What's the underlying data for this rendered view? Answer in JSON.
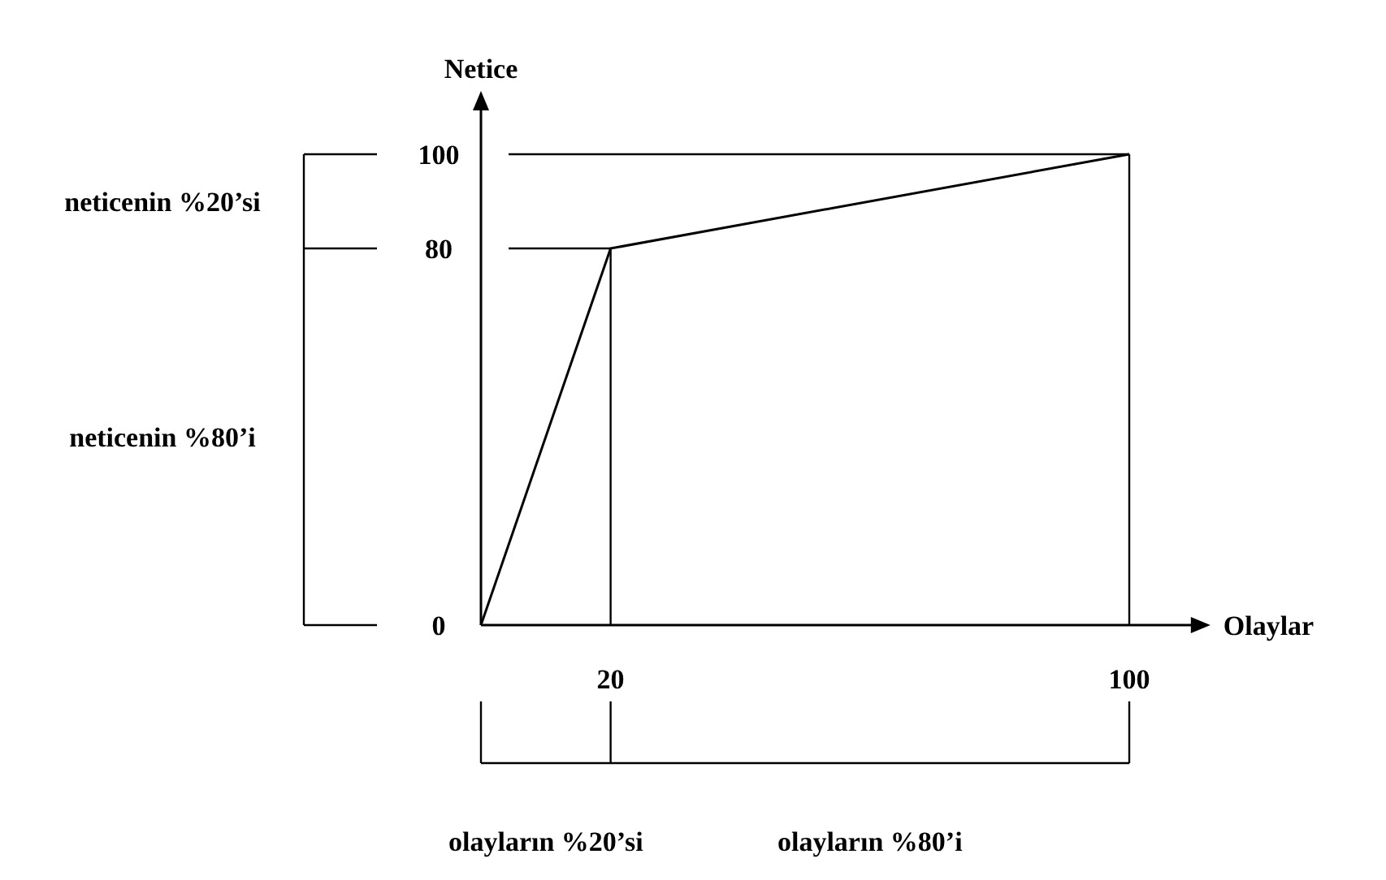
{
  "chart_data": {
    "type": "line",
    "xlabel": "Olaylar",
    "ylabel": "Netice",
    "x": [
      0,
      20,
      100
    ],
    "values": [
      0,
      80,
      100
    ],
    "color": "#000000",
    "xlim": [
      0,
      110
    ],
    "ylim": [
      0,
      110
    ],
    "xticks": [
      20,
      100
    ],
    "yticks": [
      0,
      80,
      100
    ],
    "ref_lines": [
      {
        "axis": "y",
        "value": 100
      },
      {
        "axis": "y",
        "value": 80
      },
      {
        "axis": "x",
        "value": 20
      },
      {
        "axis": "x",
        "value": 100
      }
    ],
    "annotations": [
      "neticenin %20’si",
      "neticenin %80’i",
      "olayların %20’si",
      "olayların %80’i"
    ]
  }
}
